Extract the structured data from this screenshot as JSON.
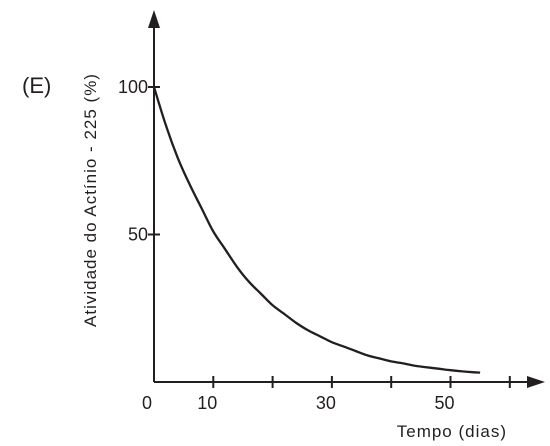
{
  "panel_label": "(E)",
  "colors": {
    "ink": "#231f20",
    "background": "#ffffff"
  },
  "chart_data": {
    "type": "line",
    "title": "",
    "xlabel": "Tempo (dias)",
    "ylabel": "Atividade do Actínio - 225 (%)",
    "xlim": [
      0,
      65
    ],
    "ylim": [
      0,
      105
    ],
    "x_ticks": [
      10,
      20,
      30,
      40,
      50,
      60
    ],
    "x_tick_labels": [
      {
        "value": 0,
        "text": "0"
      },
      {
        "value": 10,
        "text": "10"
      },
      {
        "value": 30,
        "text": "30"
      },
      {
        "value": 50,
        "text": "50"
      }
    ],
    "y_ticks": [
      50,
      100
    ],
    "y_tick_labels": [
      {
        "value": 50,
        "text": "50"
      },
      {
        "value": 100,
        "text": "100"
      }
    ],
    "grid": false,
    "legend": "none",
    "series": [
      {
        "values_x": [
          0,
          2,
          4,
          6,
          8,
          10,
          12,
          14,
          16,
          18,
          20,
          22,
          24,
          26,
          28,
          30,
          32,
          34,
          36,
          38,
          40,
          42,
          44,
          46,
          48,
          50,
          52,
          54,
          55
        ],
        "values_y": [
          100,
          87,
          76,
          67,
          59,
          51,
          45,
          39,
          34,
          30,
          26,
          23,
          20,
          17.5,
          15.5,
          13.5,
          12,
          10.5,
          9,
          8,
          7,
          6.3,
          5.5,
          5,
          4.5,
          4,
          3.6,
          3.3,
          3.2
        ]
      }
    ]
  }
}
